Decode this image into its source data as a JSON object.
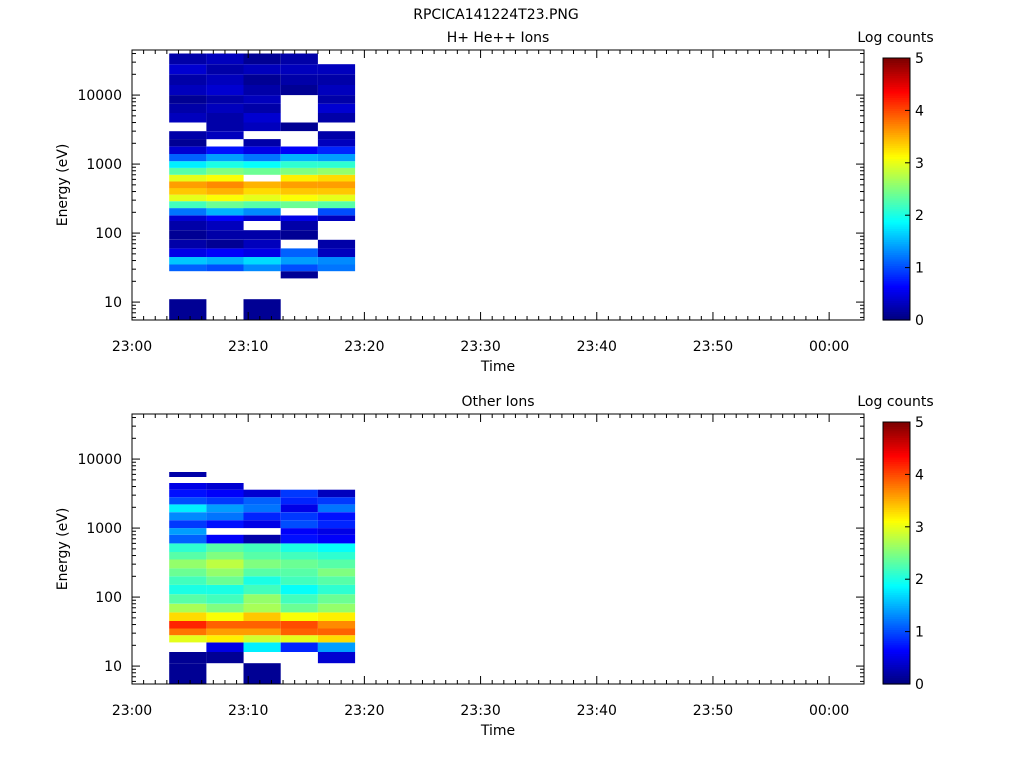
{
  "title": "RPCICA141224T23.PNG",
  "colors": {
    "background": "#ffffff",
    "axis": "#000000",
    "colormap": "jet"
  },
  "chart_data": [
    {
      "type": "heatmap",
      "title": "H+ He++ Ions",
      "xlabel": "Time",
      "ylabel": "Energy (eV)",
      "colorbar_label": "Log counts",
      "x_tick_labels": [
        "23:00",
        "23:10",
        "23:20",
        "23:30",
        "23:40",
        "23:50",
        "00:00"
      ],
      "x_range_minutes": [
        0,
        63
      ],
      "y_scale": "log",
      "y_range_eV": [
        5.5,
        45000
      ],
      "y_tick_labels": [
        "10",
        "100",
        "1000",
        "10000"
      ],
      "colorbar_range": [
        0,
        5
      ],
      "colorbar_tick_labels": [
        "0",
        "1",
        "2",
        "3",
        "4",
        "5"
      ],
      "time_bins_minutes": [
        [
          3.2,
          6.4
        ],
        [
          6.4,
          9.6
        ],
        [
          9.6,
          12.8
        ],
        [
          12.8,
          16.0
        ],
        [
          16.0,
          19.2
        ]
      ],
      "energy_bins_eV": [
        [
          5.5,
          11
        ],
        [
          22,
          28
        ],
        [
          28,
          35
        ],
        [
          35,
          45
        ],
        [
          45,
          60
        ],
        [
          60,
          80
        ],
        [
          80,
          110
        ],
        [
          110,
          150
        ],
        [
          150,
          180
        ],
        [
          180,
          230
        ],
        [
          230,
          290
        ],
        [
          290,
          360
        ],
        [
          360,
          450
        ],
        [
          450,
          560
        ],
        [
          560,
          700
        ],
        [
          700,
          880
        ],
        [
          880,
          1100
        ],
        [
          1100,
          1400
        ],
        [
          1400,
          1800
        ],
        [
          1800,
          2300
        ],
        [
          2300,
          3000
        ],
        [
          3000,
          4000
        ],
        [
          4000,
          5500
        ],
        [
          5500,
          7500
        ],
        [
          7500,
          10000
        ],
        [
          10000,
          14000
        ],
        [
          14000,
          20000
        ],
        [
          20000,
          28000
        ],
        [
          28000,
          40000
        ]
      ],
      "values_log_counts": [
        [
          0.1,
          null,
          0.1,
          null,
          null
        ],
        [
          null,
          null,
          null,
          0.1,
          null
        ],
        [
          1.1,
          1.0,
          1.3,
          1.0,
          1.2
        ],
        [
          1.6,
          1.5,
          1.7,
          1.4,
          1.3
        ],
        [
          0.5,
          0.6,
          0.5,
          1.1,
          0.3
        ],
        [
          0.2,
          0.1,
          0.3,
          null,
          0.2
        ],
        [
          0.1,
          0.2,
          0.2,
          0.1,
          null
        ],
        [
          0.2,
          0.3,
          null,
          0.2,
          null
        ],
        [
          0.4,
          0.6,
          0.4,
          0.5,
          0.3
        ],
        [
          1.2,
          1.5,
          1.3,
          null,
          1.0
        ],
        [
          2.2,
          2.4,
          2.3,
          2.4,
          2.3
        ],
        [
          3.0,
          3.1,
          3.0,
          3.1,
          3.0
        ],
        [
          3.4,
          3.5,
          3.3,
          3.4,
          3.4
        ],
        [
          3.6,
          3.7,
          3.5,
          3.6,
          3.6
        ],
        [
          3.0,
          3.1,
          null,
          3.2,
          3.3
        ],
        [
          2.3,
          2.5,
          2.4,
          2.5,
          2.6
        ],
        [
          1.8,
          2.0,
          1.9,
          2.1,
          2.1
        ],
        [
          1.1,
          1.4,
          1.2,
          1.5,
          1.4
        ],
        [
          0.4,
          0.7,
          0.5,
          0.6,
          0.8
        ],
        [
          0.1,
          null,
          0.2,
          null,
          0.3
        ],
        [
          0.2,
          0.3,
          null,
          null,
          0.2
        ],
        [
          null,
          0.2,
          0.3,
          0.1,
          null
        ],
        [
          0.3,
          0.2,
          0.4,
          null,
          0.2
        ],
        [
          0.2,
          0.3,
          0.2,
          null,
          0.4
        ],
        [
          0.1,
          0.2,
          0.3,
          null,
          0.2
        ],
        [
          0.3,
          0.4,
          0.2,
          0.1,
          0.3
        ],
        [
          0.2,
          0.3,
          0.1,
          0.2,
          0.2
        ],
        [
          0.4,
          0.2,
          0.3,
          0.3,
          0.3
        ],
        [
          0.2,
          0.3,
          0.1,
          0.2,
          null
        ]
      ]
    },
    {
      "type": "heatmap",
      "title": "Other Ions",
      "xlabel": "Time",
      "ylabel": "Energy (eV)",
      "colorbar_label": "Log counts",
      "x_tick_labels": [
        "23:00",
        "23:10",
        "23:20",
        "23:30",
        "23:40",
        "23:50",
        "00:00"
      ],
      "x_range_minutes": [
        0,
        63
      ],
      "y_scale": "log",
      "y_range_eV": [
        5.5,
        45000
      ],
      "y_tick_labels": [
        "10",
        "100",
        "1000",
        "10000"
      ],
      "colorbar_range": [
        0,
        5
      ],
      "colorbar_tick_labels": [
        "0",
        "1",
        "2",
        "3",
        "4",
        "5"
      ],
      "time_bins_minutes": [
        [
          3.2,
          6.4
        ],
        [
          6.4,
          9.6
        ],
        [
          9.6,
          12.8
        ],
        [
          12.8,
          16.0
        ],
        [
          16.0,
          19.2
        ]
      ],
      "energy_bins_eV": [
        [
          5.5,
          11
        ],
        [
          11,
          16
        ],
        [
          16,
          22
        ],
        [
          22,
          28
        ],
        [
          28,
          35
        ],
        [
          35,
          45
        ],
        [
          45,
          60
        ],
        [
          60,
          80
        ],
        [
          80,
          110
        ],
        [
          110,
          150
        ],
        [
          150,
          200
        ],
        [
          200,
          260
        ],
        [
          260,
          350
        ],
        [
          350,
          450
        ],
        [
          450,
          600
        ],
        [
          600,
          800
        ],
        [
          800,
          1000
        ],
        [
          1000,
          1300
        ],
        [
          1300,
          1700
        ],
        [
          1700,
          2200
        ],
        [
          2200,
          2800
        ],
        [
          2800,
          3600
        ],
        [
          3600,
          4500
        ],
        [
          5500,
          6500
        ]
      ],
      "values_log_counts": [
        [
          0.1,
          null,
          0.1,
          null,
          null
        ],
        [
          0.1,
          0.1,
          null,
          null,
          0.4
        ],
        [
          null,
          0.5,
          1.8,
          0.8,
          1.4
        ],
        [
          3.0,
          3.2,
          2.9,
          3.0,
          3.3
        ],
        [
          3.8,
          3.6,
          3.6,
          3.9,
          3.9
        ],
        [
          4.2,
          3.9,
          3.9,
          4.0,
          3.7
        ],
        [
          3.3,
          3.1,
          3.4,
          3.1,
          3.2
        ],
        [
          2.7,
          2.5,
          2.7,
          2.4,
          2.6
        ],
        [
          2.3,
          2.2,
          2.6,
          2.2,
          2.4
        ],
        [
          2.0,
          2.0,
          2.2,
          1.9,
          2.1
        ],
        [
          2.2,
          2.4,
          2.0,
          2.2,
          2.3
        ],
        [
          2.4,
          2.6,
          2.3,
          2.3,
          2.5
        ],
        [
          2.6,
          2.8,
          2.5,
          2.4,
          2.3
        ],
        [
          2.3,
          2.5,
          2.3,
          2.2,
          2.1
        ],
        [
          2.1,
          2.3,
          2.2,
          2.0,
          1.9
        ],
        [
          1.1,
          0.6,
          0.2,
          0.7,
          0.6
        ],
        [
          1.4,
          null,
          null,
          0.6,
          0.5
        ],
        [
          0.9,
          0.7,
          0.5,
          1.0,
          0.8
        ],
        [
          1.3,
          1.2,
          0.8,
          0.9,
          0.7
        ],
        [
          1.8,
          1.4,
          1.2,
          0.5,
          1.2
        ],
        [
          1.0,
          0.9,
          1.1,
          0.8,
          0.9
        ],
        [
          0.7,
          0.6,
          0.4,
          0.9,
          0.3
        ],
        [
          0.5,
          0.4,
          null,
          null,
          null
        ],
        [
          0.2,
          null,
          null,
          null,
          null
        ]
      ]
    }
  ]
}
